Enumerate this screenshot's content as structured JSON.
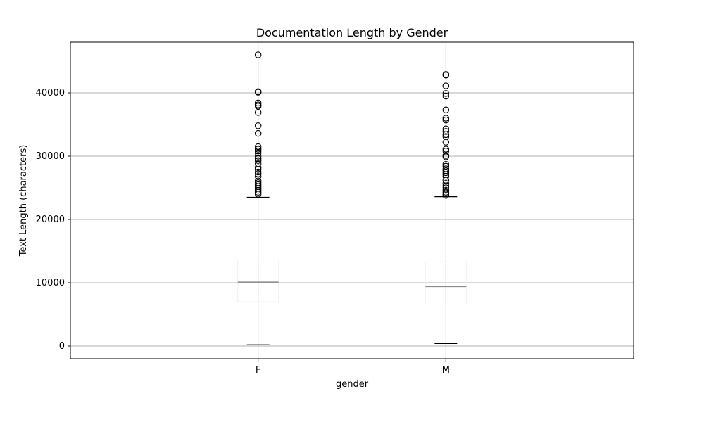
{
  "chart_data": {
    "type": "box",
    "title": "Documentation Length by Gender",
    "xlabel": "gender",
    "ylabel": "Text Length (characters)",
    "ylim": [
      -2000,
      48000
    ],
    "yticks": [
      0,
      10000,
      20000,
      30000,
      40000
    ],
    "grid": true,
    "categories": [
      "F",
      "M"
    ],
    "boxes": [
      {
        "category": "F",
        "whisker_low": 200,
        "q1": 7000,
        "median": 10100,
        "q3": 13600,
        "whisker_high": 23500,
        "outliers": [
          46000,
          40200,
          40100,
          38400,
          38100,
          37900,
          36900,
          34800,
          33600,
          31500,
          31100,
          30800,
          30500,
          30000,
          29600,
          29300,
          28800,
          28200,
          27900,
          27500,
          27200,
          26800,
          26100,
          25800,
          25500,
          25200,
          24900,
          24600,
          24300,
          24000
        ]
      },
      {
        "category": "M",
        "whisker_low": 400,
        "q1": 6500,
        "median": 9400,
        "q3": 13300,
        "whisker_high": 23600,
        "outliers": [
          42900,
          42800,
          41100,
          39900,
          39500,
          37300,
          36000,
          35700,
          34300,
          33900,
          33400,
          33100,
          32200,
          31100,
          30800,
          30100,
          29900,
          28700,
          28400,
          28000,
          27700,
          27400,
          27100,
          26800,
          26200,
          25700,
          25300,
          25000,
          24600,
          24300,
          24000,
          23800
        ]
      }
    ]
  }
}
